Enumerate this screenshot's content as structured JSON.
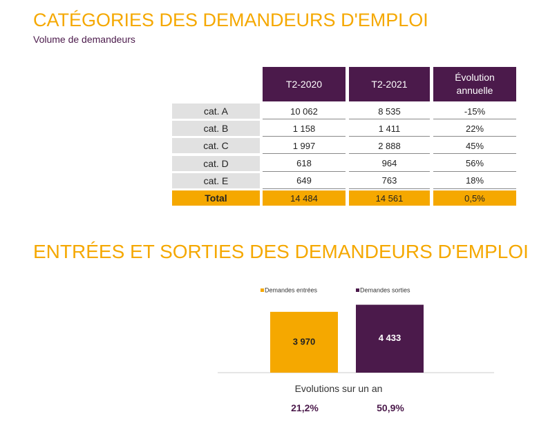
{
  "section1": {
    "title": "CATÉGORIES DES DEMANDEURS D'EMPLOI",
    "subtitle": "Volume de demandeurs"
  },
  "table": {
    "header": [
      "T2-2020",
      "T2-2021",
      "Évolution annuelle"
    ],
    "rows": [
      [
        "cat. A",
        "10 062",
        "8 535",
        "-15%"
      ],
      [
        "cat. B",
        "1 158",
        "1 411",
        "22%"
      ],
      [
        "cat. C",
        "1 997",
        "2 888",
        "45%"
      ],
      [
        "cat. D",
        "618",
        "964",
        "56%"
      ],
      [
        "cat. E",
        "649",
        "763",
        "18%"
      ]
    ],
    "total": [
      "Total",
      "14 484",
      "14 561",
      "0,5%"
    ]
  },
  "section2": {
    "title": "ENTRÉES ET SORTIES DES DEMANDEURS D'EMPLOI"
  },
  "chart_data": {
    "type": "bar",
    "categories": [
      null
    ],
    "series": [
      {
        "name": "Demandes entrées",
        "color": "#f5a800",
        "values": [
          3970
        ],
        "value_labels": [
          "3 970"
        ]
      },
      {
        "name": "Demandes sorties",
        "color": "#4b1a4b",
        "values": [
          4433
        ],
        "value_labels": [
          "4 433"
        ]
      }
    ],
    "ylim": [
      0,
      5000
    ]
  },
  "evolution": {
    "title": "Evolutions sur un an",
    "values": [
      "21,2%",
      "50,9%"
    ]
  }
}
